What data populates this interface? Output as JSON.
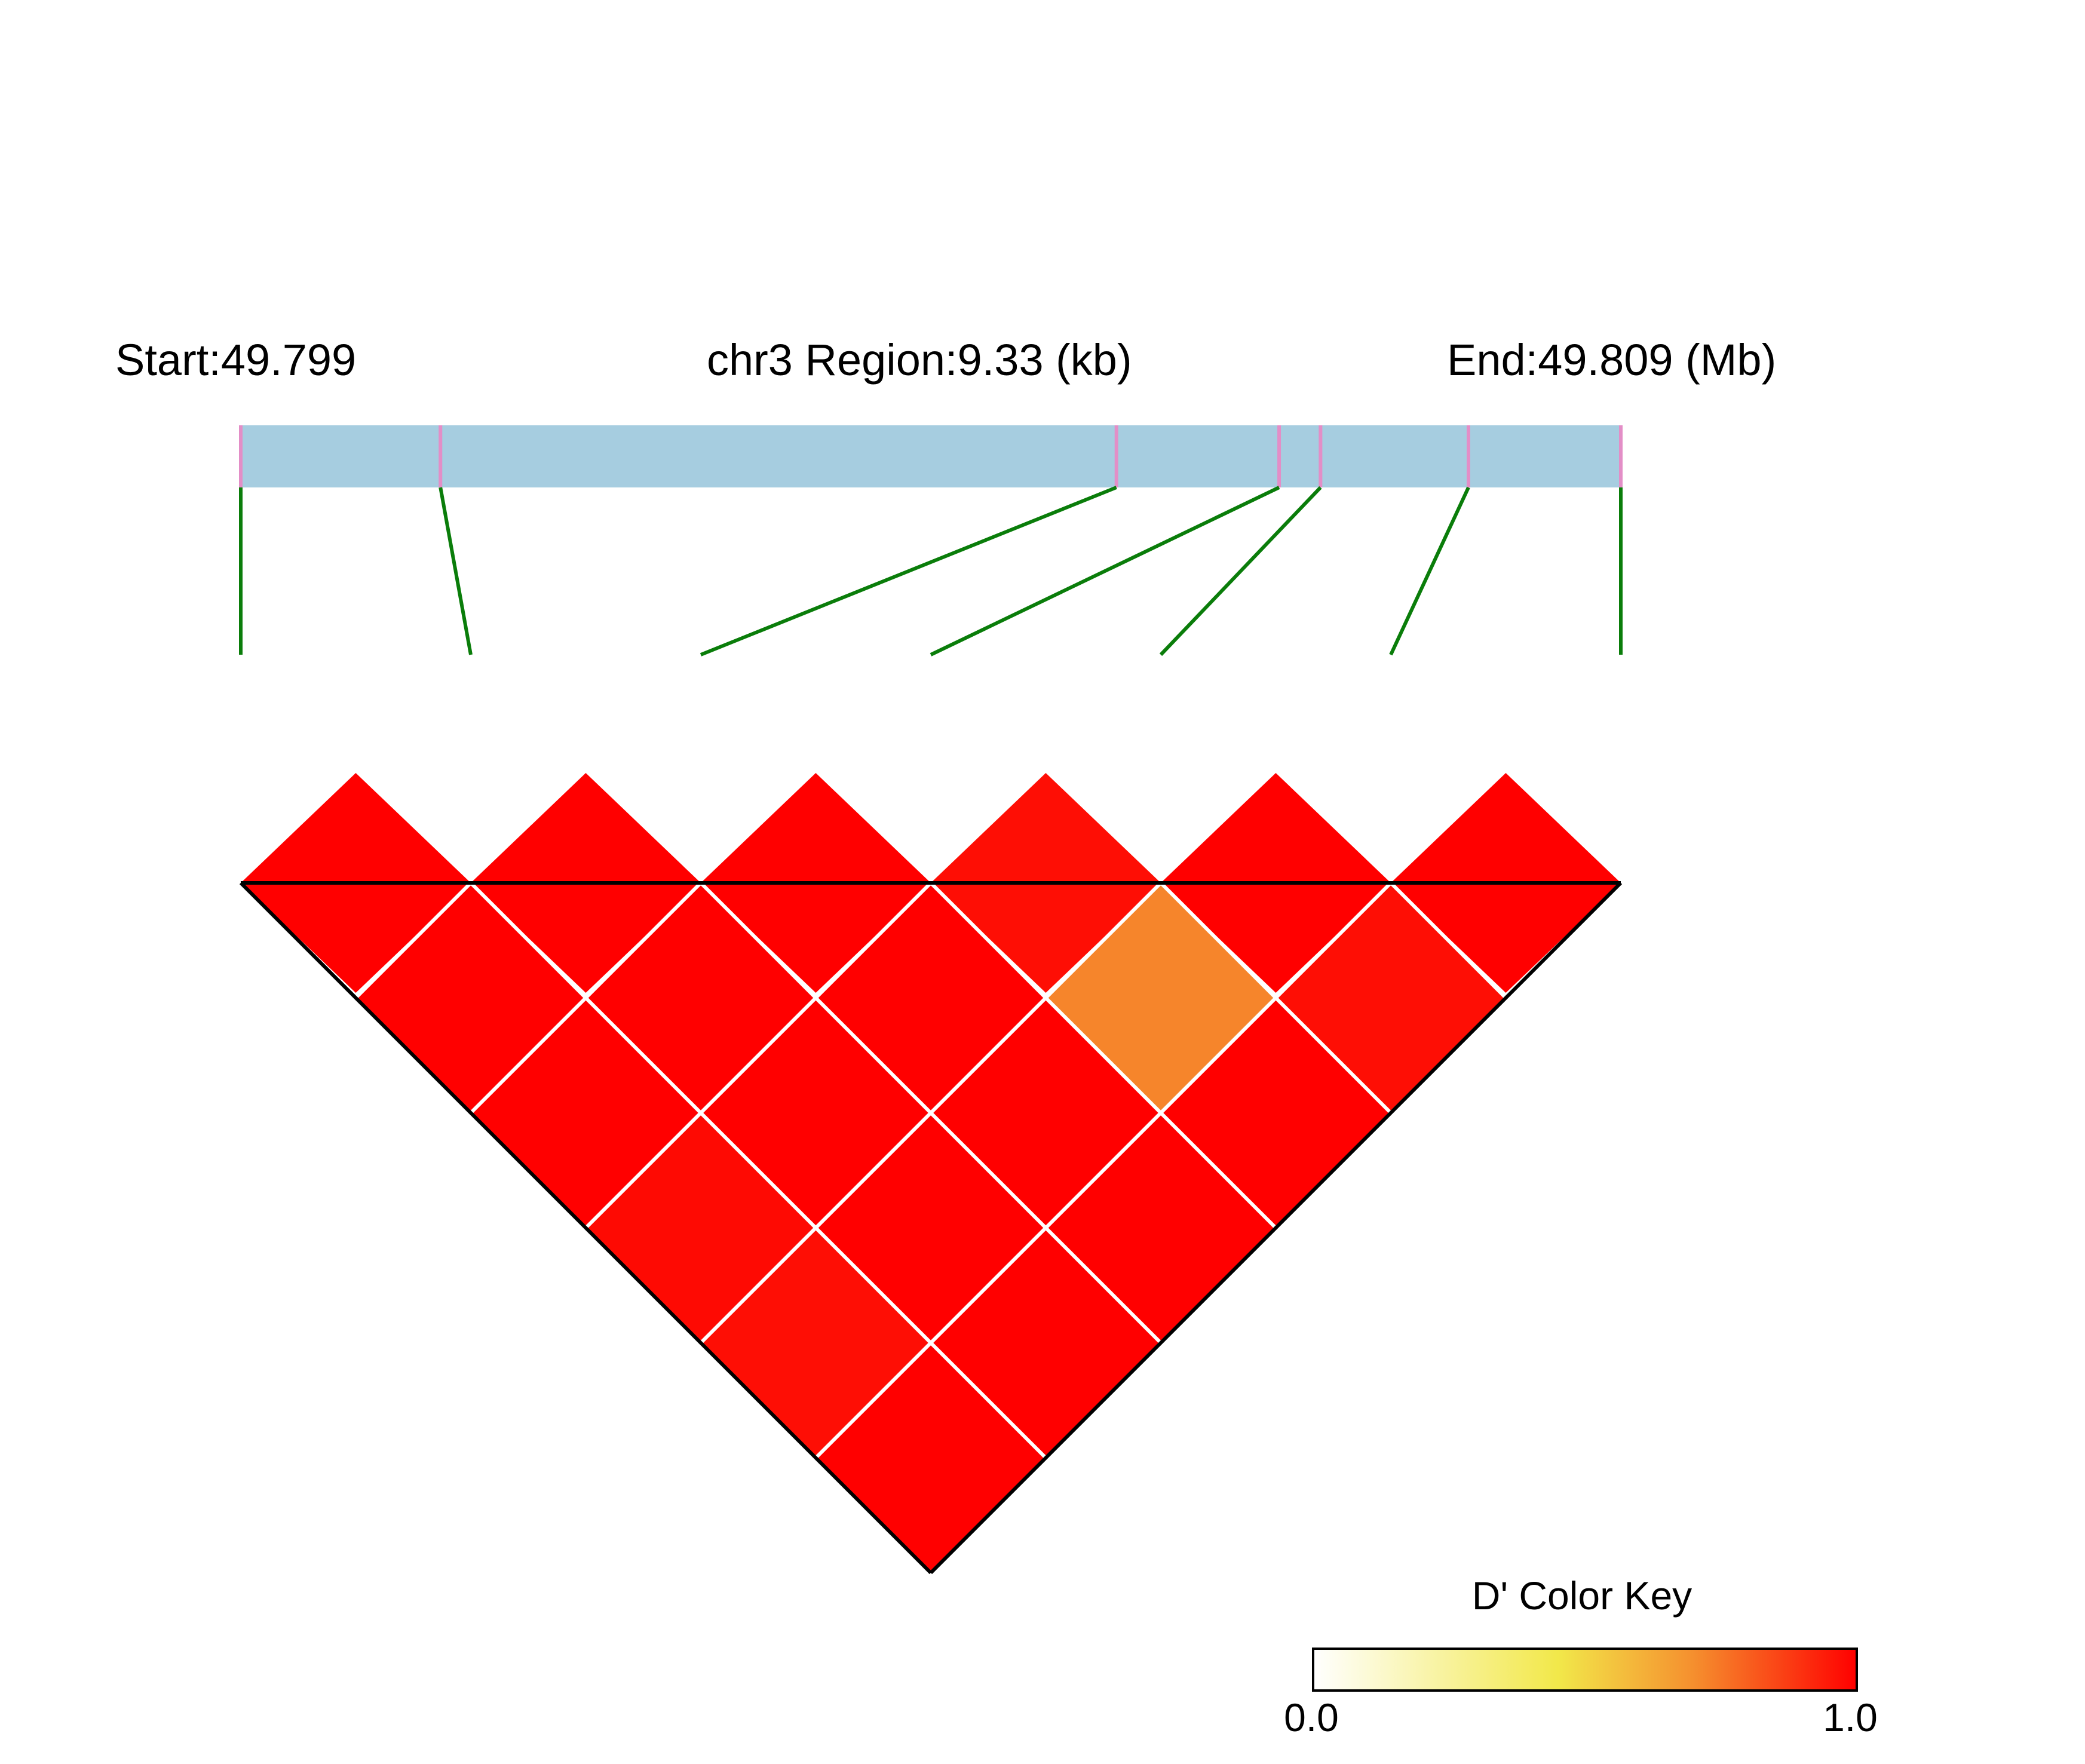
{
  "chart_data": {
    "type": "heatmap",
    "title_left": "Start:49.799",
    "title_center": "chr3 Region:9.33 (kb)",
    "title_right": "End:49.809 (Mb)",
    "snp_count": 7,
    "snp_positions_kb": [
      0.0,
      1.35,
      5.92,
      7.02,
      7.3,
      8.3,
      9.33
    ],
    "region_length_kb": 9.33,
    "ld_matrix": {
      "metric": "D'",
      "rows": [
        [
          1.0,
          1.0,
          1.0,
          0.97,
          1.0,
          1.0
        ],
        [
          1.0,
          1.0,
          1.0,
          0.72,
          0.97
        ],
        [
          1.0,
          1.0,
          1.0,
          1.0
        ],
        [
          0.98,
          1.0,
          1.0
        ],
        [
          0.97,
          1.0
        ],
        [
          1.0
        ]
      ]
    },
    "color_key": {
      "title": "D' Color Key",
      "min_label": "0.0",
      "max_label": "1.0",
      "min": 0.0,
      "max": 1.0,
      "colors": [
        "#ffffff",
        "#f2e84a",
        "#f58f2e",
        "#ff0000"
      ]
    },
    "colors": {
      "track": "#a6cde0",
      "snp_tick": "#e38ec7",
      "connector": "#0a7d0a",
      "cell_border": "#ffffff",
      "outline": "#000000"
    }
  }
}
